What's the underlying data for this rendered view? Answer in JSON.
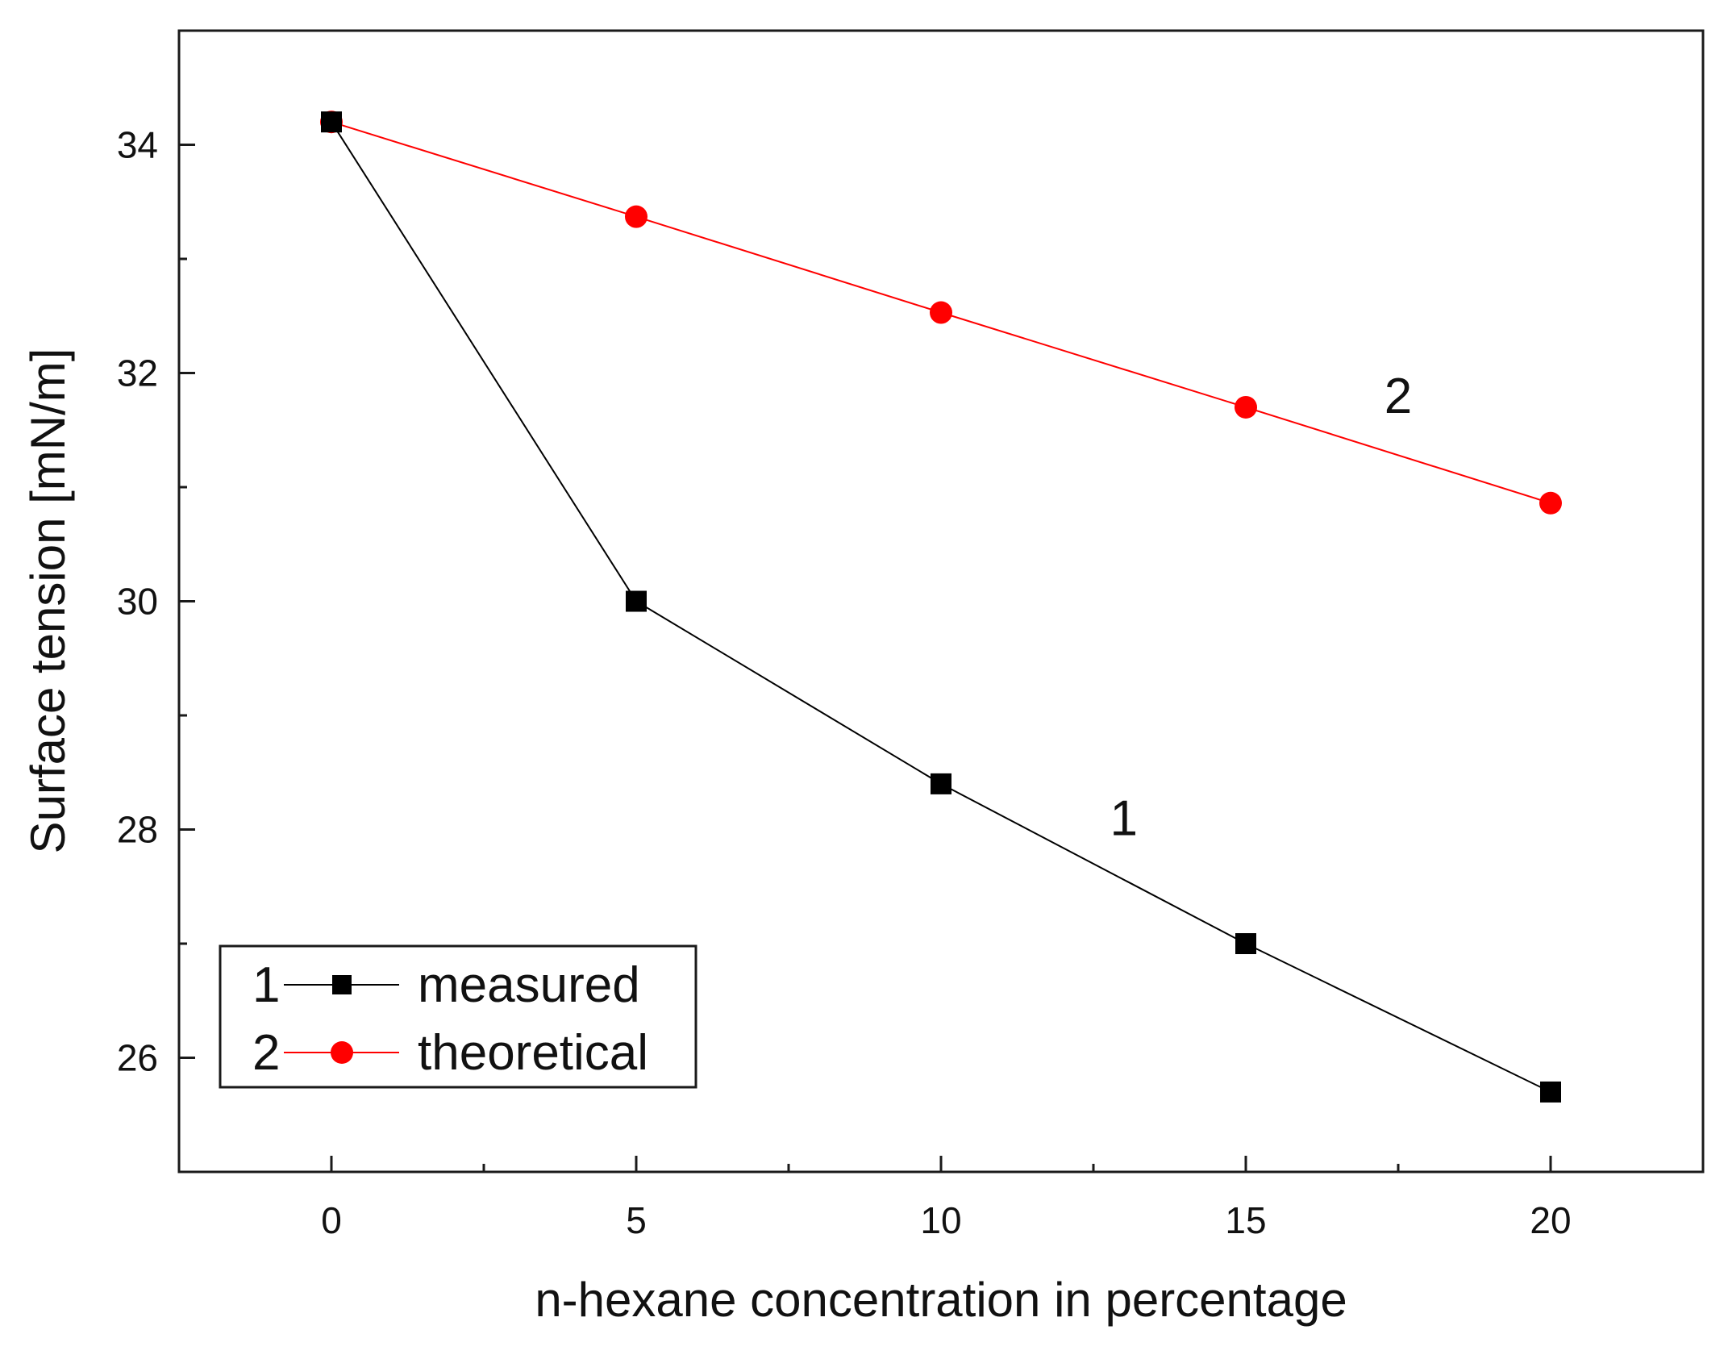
{
  "chart_data": {
    "type": "line",
    "title": "",
    "xlabel": "n-hexane concentration in percentage",
    "ylabel": "Surface tension [mN/m]",
    "xlim": [
      -2.5,
      22.5
    ],
    "ylim": [
      25.0,
      35.0
    ],
    "xticks": [
      0,
      5,
      10,
      15,
      20
    ],
    "xtick_labels": [
      "0",
      "5",
      "10",
      "15",
      "20"
    ],
    "yticks": [
      26,
      28,
      30,
      32,
      34
    ],
    "ytick_labels": [
      "26",
      "28",
      "30",
      "32",
      "34"
    ],
    "grid": false,
    "legend_position": "bottom-left",
    "series": [
      {
        "id": "1",
        "name": "measured",
        "number_label": "1",
        "color": "#000000",
        "marker": "square",
        "x": [
          0,
          5,
          10,
          15,
          20
        ],
        "y": [
          34.2,
          30.0,
          28.4,
          27.0,
          25.7
        ]
      },
      {
        "id": "2",
        "name": "theoretical",
        "number_label": "2",
        "color": "#ff0000",
        "marker": "circle",
        "x": [
          0,
          5,
          10,
          15,
          20
        ],
        "y": [
          34.2,
          33.37,
          32.53,
          31.7,
          30.86
        ]
      }
    ],
    "annotations": [
      {
        "text": "1",
        "series": "1",
        "x": 13.0,
        "y": 27.95
      },
      {
        "text": "2",
        "series": "2",
        "x": 17.5,
        "y": 31.65
      }
    ]
  }
}
